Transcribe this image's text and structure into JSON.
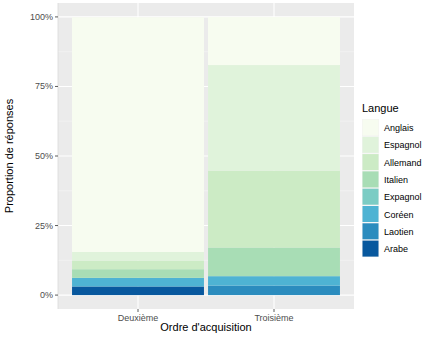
{
  "chart_data": {
    "type": "bar",
    "stacked": true,
    "grid": true,
    "legend": "right",
    "x_label": "Ordre d'acquisition",
    "y_label": "Proportion de réponses",
    "legend_title": "Langue",
    "categories": [
      "Deuxième",
      "Troisième"
    ],
    "ylim": [
      -5,
      105
    ],
    "yticks": [
      {
        "value": 0,
        "label": "0%"
      },
      {
        "value": 25,
        "label": "25%"
      },
      {
        "value": 50,
        "label": "50%"
      },
      {
        "value": 75,
        "label": "75%"
      },
      {
        "value": 100,
        "label": "100%"
      }
    ],
    "series": [
      {
        "name": "Anglais",
        "color": "#f7fcf0",
        "values": [
          84.4,
          17.3
        ]
      },
      {
        "name": "Espagnol",
        "color": "#e0f3db",
        "values": [
          3.1,
          38.0
        ]
      },
      {
        "name": "Allemand",
        "color": "#ccebc5",
        "values": [
          3.1,
          27.6
        ]
      },
      {
        "name": "Italien",
        "color": "#a8ddb5",
        "values": [
          3.1,
          10.3
        ]
      },
      {
        "name": "Expagnol",
        "color": "#7bccc4",
        "values": [
          0,
          0
        ]
      },
      {
        "name": "Coréen",
        "color": "#4eb3d3",
        "values": [
          3.1,
          3.4
        ]
      },
      {
        "name": "Laotien",
        "color": "#2b8cbe",
        "values": [
          0,
          3.4
        ]
      },
      {
        "name": "Arabe",
        "color": "#08589e",
        "values": [
          3.1,
          0
        ]
      }
    ]
  }
}
